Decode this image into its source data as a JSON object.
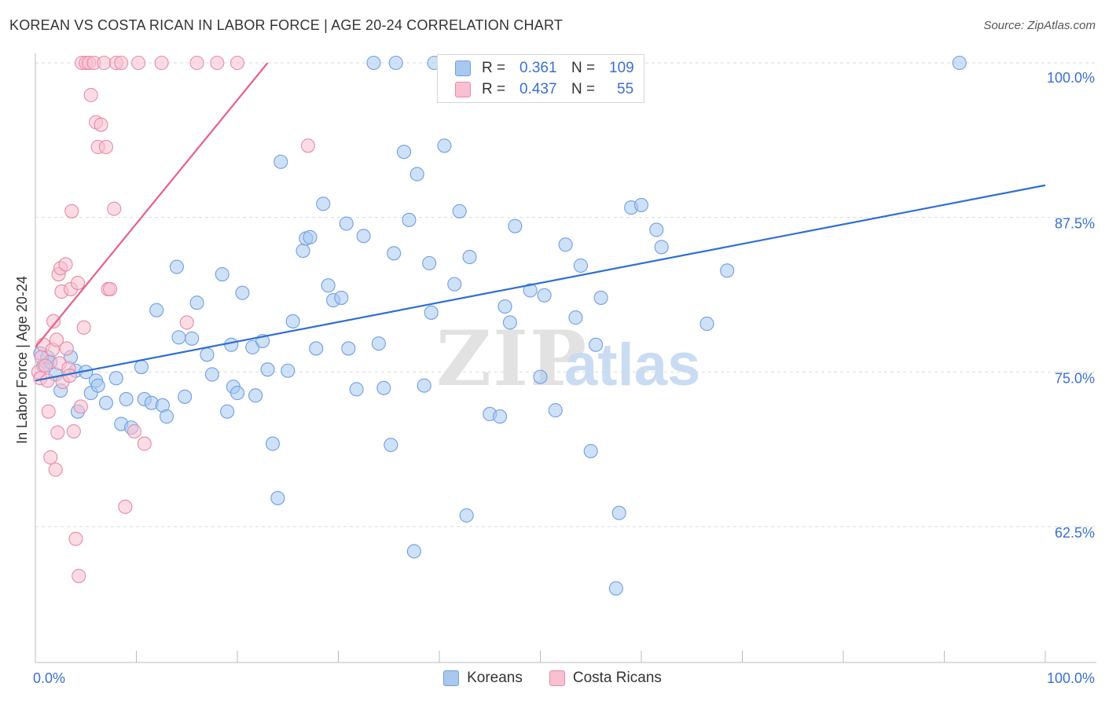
{
  "title": "KOREAN VS COSTA RICAN IN LABOR FORCE | AGE 20-24 CORRELATION CHART",
  "source": "Source: ZipAtlas.com",
  "watermark": {
    "zip": "ZIP",
    "atlas": "atlas"
  },
  "stats": [
    {
      "r_label": "R =",
      "r_value": "0.361",
      "n_label": "N =",
      "n_value": "109",
      "color": "#a8c8f0",
      "border": "#6f9fe0"
    },
    {
      "r_label": "R =",
      "r_value": "0.437",
      "n_label": "N =",
      "n_value": "55",
      "color": "#f8c0d0",
      "border": "#e88aa8"
    }
  ],
  "legend": [
    {
      "label": "Koreans",
      "color": "#a8c8f0",
      "border": "#6f9fe0"
    },
    {
      "label": "Costa Ricans",
      "color": "#f8c0d0",
      "border": "#e88aa8"
    }
  ],
  "chart_data": {
    "type": "scatter",
    "ylabel": "In Labor Force | Age 20-24",
    "xlabel": "",
    "xlim": [
      0,
      100
    ],
    "ylim": [
      52.5,
      102.5
    ],
    "x_tick_labels": [
      {
        "value": 0,
        "label": "0.0%"
      },
      {
        "value": 100,
        "label": "100.0%"
      }
    ],
    "y_ticks": [
      {
        "value": 100,
        "label": "100.0%"
      },
      {
        "value": 87.5,
        "label": "87.5%"
      },
      {
        "value": 75,
        "label": "75.0%"
      },
      {
        "value": 62.5,
        "label": "62.5%"
      }
    ],
    "grid": true,
    "series": [
      {
        "name": "Koreans",
        "color": "#a8c8f0",
        "stroke": "#6f9fe0",
        "line_color": "#2f6fd0",
        "trend": {
          "x0": 0,
          "y0": 74.3,
          "x1": 100,
          "y1": 90.1
        },
        "points": [
          [
            0.5,
            76.5
          ],
          [
            0.8,
            75.5
          ],
          [
            1.2,
            76.2
          ],
          [
            1.5,
            75.8
          ],
          [
            2.0,
            74.8
          ],
          [
            2.5,
            73.5
          ],
          [
            3.5,
            76.2
          ],
          [
            4.0,
            75.1
          ],
          [
            4.2,
            71.8
          ],
          [
            5.0,
            75.0
          ],
          [
            5.5,
            73.3
          ],
          [
            6.0,
            74.3
          ],
          [
            6.2,
            73.9
          ],
          [
            7.0,
            72.5
          ],
          [
            8.0,
            74.5
          ],
          [
            8.5,
            70.8
          ],
          [
            9.0,
            72.8
          ],
          [
            9.5,
            70.5
          ],
          [
            10.5,
            75.4
          ],
          [
            10.8,
            72.8
          ],
          [
            11.5,
            72.5
          ],
          [
            12.0,
            80.0
          ],
          [
            12.6,
            72.3
          ],
          [
            13.0,
            71.4
          ],
          [
            14.0,
            83.5
          ],
          [
            14.2,
            77.8
          ],
          [
            14.8,
            73.0
          ],
          [
            15.5,
            77.7
          ],
          [
            16.0,
            80.6
          ],
          [
            17.0,
            76.4
          ],
          [
            17.5,
            74.8
          ],
          [
            18.5,
            82.9
          ],
          [
            19.0,
            71.8
          ],
          [
            19.4,
            77.2
          ],
          [
            19.6,
            73.8
          ],
          [
            20.0,
            73.3
          ],
          [
            20.5,
            81.4
          ],
          [
            21.5,
            77.0
          ],
          [
            21.8,
            73.1
          ],
          [
            22.5,
            77.5
          ],
          [
            23.0,
            75.2
          ],
          [
            23.5,
            69.2
          ],
          [
            24.0,
            64.8
          ],
          [
            24.3,
            92.0
          ],
          [
            25.0,
            75.1
          ],
          [
            25.5,
            79.1
          ],
          [
            26.5,
            84.8
          ],
          [
            26.8,
            85.8
          ],
          [
            27.2,
            85.9
          ],
          [
            27.8,
            76.9
          ],
          [
            28.5,
            88.6
          ],
          [
            29.0,
            82.0
          ],
          [
            29.5,
            80.8
          ],
          [
            30.3,
            81.0
          ],
          [
            30.8,
            87.0
          ],
          [
            31.0,
            76.9
          ],
          [
            31.8,
            73.6
          ],
          [
            32.5,
            86.0
          ],
          [
            33.5,
            100.0
          ],
          [
            34.0,
            77.3
          ],
          [
            34.5,
            73.7
          ],
          [
            35.2,
            69.1
          ],
          [
            35.5,
            84.6
          ],
          [
            35.7,
            100.0
          ],
          [
            36.5,
            92.8
          ],
          [
            37.0,
            87.3
          ],
          [
            37.5,
            60.5
          ],
          [
            37.8,
            91.0
          ],
          [
            38.5,
            73.9
          ],
          [
            39.0,
            83.8
          ],
          [
            39.2,
            79.8
          ],
          [
            39.5,
            100.0
          ],
          [
            40.5,
            93.3
          ],
          [
            41.5,
            82.1
          ],
          [
            42.0,
            88.0
          ],
          [
            42.7,
            63.4
          ],
          [
            43.0,
            84.3
          ],
          [
            45.0,
            71.6
          ],
          [
            46.0,
            71.4
          ],
          [
            46.5,
            80.3
          ],
          [
            47.0,
            79.0
          ],
          [
            47.5,
            86.8
          ],
          [
            49.0,
            81.6
          ],
          [
            50.0,
            74.6
          ],
          [
            50.4,
            81.2
          ],
          [
            51.5,
            71.9
          ],
          [
            52.5,
            85.3
          ],
          [
            52.8,
            100.0
          ],
          [
            53.5,
            79.4
          ],
          [
            54.0,
            83.6
          ],
          [
            55.0,
            68.6
          ],
          [
            55.5,
            77.2
          ],
          [
            56.0,
            81.0
          ],
          [
            57.5,
            57.5
          ],
          [
            57.8,
            63.6
          ],
          [
            59.0,
            88.3
          ],
          [
            60.0,
            88.5
          ],
          [
            61.5,
            86.5
          ],
          [
            62.0,
            85.1
          ],
          [
            66.5,
            78.9
          ],
          [
            68.5,
            83.2
          ],
          [
            91.5,
            100.0
          ]
        ]
      },
      {
        "name": "Costa Ricans",
        "color": "#f8c0d0",
        "stroke": "#e88aa8",
        "line_color": "#e8608a",
        "trend": {
          "x0": 0,
          "y0": 77.0,
          "x1": 23,
          "y1": 100.0
        },
        "points": [
          [
            0.3,
            75.0
          ],
          [
            0.5,
            74.5
          ],
          [
            0.6,
            76.2
          ],
          [
            0.8,
            77.2
          ],
          [
            1.0,
            75.5
          ],
          [
            1.2,
            74.3
          ],
          [
            1.3,
            71.8
          ],
          [
            1.5,
            68.1
          ],
          [
            1.7,
            76.8
          ],
          [
            1.8,
            79.1
          ],
          [
            2.0,
            67.1
          ],
          [
            2.1,
            77.6
          ],
          [
            2.2,
            70.1
          ],
          [
            2.3,
            82.9
          ],
          [
            2.4,
            75.7
          ],
          [
            2.5,
            83.4
          ],
          [
            2.6,
            81.5
          ],
          [
            2.7,
            74.2
          ],
          [
            3.0,
            83.7
          ],
          [
            3.1,
            76.9
          ],
          [
            3.3,
            75.3
          ],
          [
            3.4,
            74.7
          ],
          [
            3.5,
            81.7
          ],
          [
            3.6,
            88.0
          ],
          [
            3.8,
            70.2
          ],
          [
            4.0,
            61.5
          ],
          [
            4.2,
            82.2
          ],
          [
            4.3,
            58.5
          ],
          [
            4.5,
            72.2
          ],
          [
            4.6,
            100.0
          ],
          [
            4.8,
            78.6
          ],
          [
            5.0,
            100.0
          ],
          [
            5.3,
            100.0
          ],
          [
            5.5,
            97.4
          ],
          [
            5.8,
            100.0
          ],
          [
            6.0,
            95.2
          ],
          [
            6.2,
            93.2
          ],
          [
            6.5,
            95.0
          ],
          [
            6.8,
            100.0
          ],
          [
            7.0,
            93.2
          ],
          [
            7.2,
            81.7
          ],
          [
            7.4,
            81.7
          ],
          [
            7.8,
            88.2
          ],
          [
            8.0,
            100.0
          ],
          [
            8.5,
            100.0
          ],
          [
            8.9,
            64.1
          ],
          [
            9.8,
            70.2
          ],
          [
            10.2,
            100.0
          ],
          [
            10.8,
            69.2
          ],
          [
            12.5,
            100.0
          ],
          [
            15.0,
            79.0
          ],
          [
            16.0,
            100.0
          ],
          [
            18.0,
            100.0
          ],
          [
            20.0,
            100.0
          ],
          [
            27.0,
            93.3
          ]
        ]
      }
    ]
  }
}
